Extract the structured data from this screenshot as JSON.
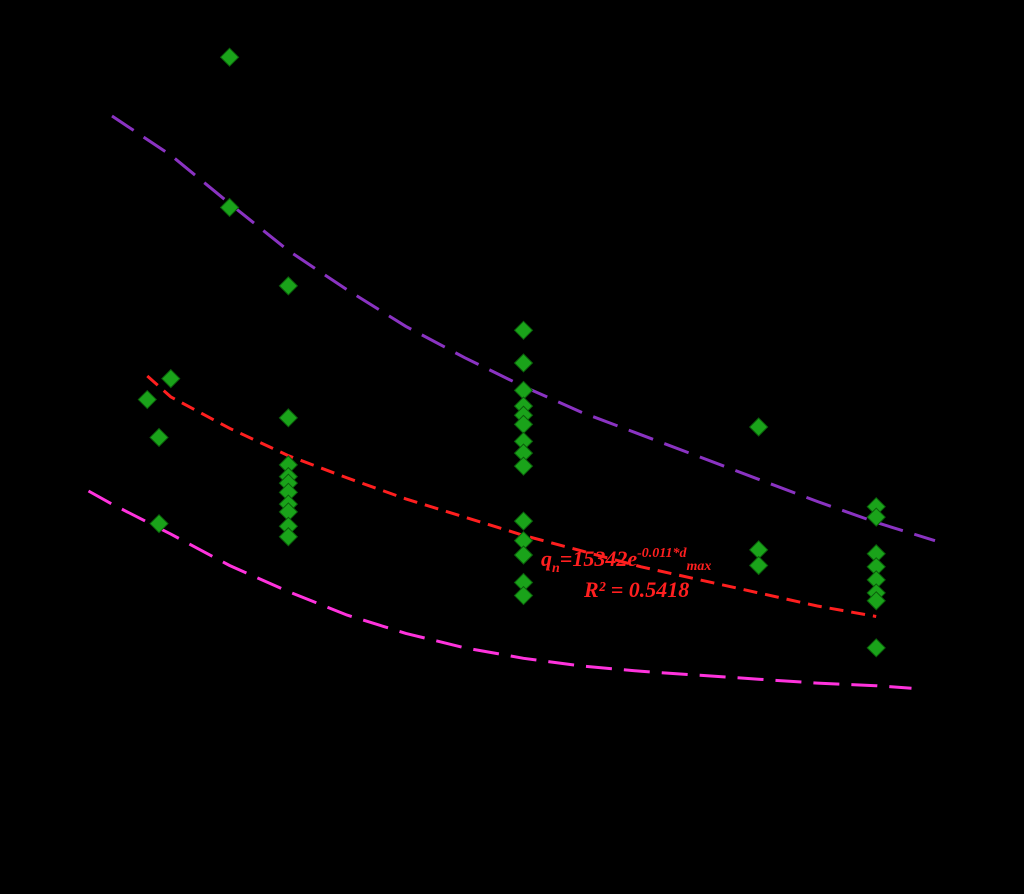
{
  "chart_data": {
    "type": "scatter",
    "xlim": [
      150,
      850
    ],
    "ylim": [
      500,
      6500
    ],
    "grid": false,
    "series": [
      {
        "kind": "scatter",
        "marker": "diamond",
        "color": "#1aa31a",
        "points": [
          [
            250,
            6200
          ],
          [
            250,
            5050
          ],
          [
            300,
            4450
          ],
          [
            200,
            3740
          ],
          [
            180,
            3580
          ],
          [
            190,
            3290
          ],
          [
            190,
            2630
          ],
          [
            300,
            3440
          ],
          [
            300,
            3080
          ],
          [
            300,
            2990
          ],
          [
            300,
            2940
          ],
          [
            300,
            2870
          ],
          [
            300,
            2780
          ],
          [
            300,
            2720
          ],
          [
            300,
            2610
          ],
          [
            300,
            2530
          ],
          [
            500,
            4110
          ],
          [
            500,
            3860
          ],
          [
            500,
            3650
          ],
          [
            500,
            3530
          ],
          [
            500,
            3460
          ],
          [
            500,
            3390
          ],
          [
            500,
            3260
          ],
          [
            500,
            3170
          ],
          [
            500,
            3070
          ],
          [
            500,
            2650
          ],
          [
            500,
            2500
          ],
          [
            500,
            2390
          ],
          [
            500,
            2180
          ],
          [
            500,
            2080
          ],
          [
            700,
            3370
          ],
          [
            700,
            2430
          ],
          [
            700,
            2310
          ],
          [
            800,
            2760
          ],
          [
            800,
            2680
          ],
          [
            800,
            2400
          ],
          [
            800,
            2300
          ],
          [
            800,
            2200
          ],
          [
            800,
            2100
          ],
          [
            800,
            2040
          ],
          [
            800,
            1680
          ]
        ]
      },
      {
        "kind": "fit",
        "color": "#ff1f1f",
        "dash": "short",
        "x": [
          180,
          200,
          250,
          300,
          350,
          400,
          450,
          500,
          550,
          600,
          650,
          700,
          750,
          800
        ],
        "y": [
          3760,
          3600,
          3360,
          3150,
          2980,
          2820,
          2680,
          2540,
          2420,
          2300,
          2200,
          2100,
          2000,
          1920
        ]
      },
      {
        "kind": "upper",
        "color": "#8a33c2",
        "dash": "long",
        "x": [
          150,
          200,
          250,
          300,
          350,
          400,
          450,
          500,
          550,
          600,
          650,
          700,
          750,
          800,
          850
        ],
        "y": [
          5750,
          5450,
          5080,
          4720,
          4420,
          4140,
          3900,
          3680,
          3480,
          3310,
          3140,
          2970,
          2800,
          2640,
          2500
        ]
      },
      {
        "kind": "lower",
        "color": "#ff33dd",
        "dash": "long",
        "x": [
          130,
          150,
          200,
          250,
          300,
          350,
          400,
          450,
          500,
          550,
          600,
          650,
          700,
          750,
          800,
          830
        ],
        "y": [
          2880,
          2780,
          2550,
          2310,
          2110,
          1930,
          1790,
          1680,
          1600,
          1540,
          1500,
          1470,
          1440,
          1410,
          1390,
          1370
        ]
      }
    ],
    "annotations": {
      "equation": {
        "q": "q",
        "n": "n",
        "mid": "=15342e",
        "exponent": "-0.011*d",
        "max": "max"
      },
      "r2": "R² = 0.5418"
    }
  }
}
